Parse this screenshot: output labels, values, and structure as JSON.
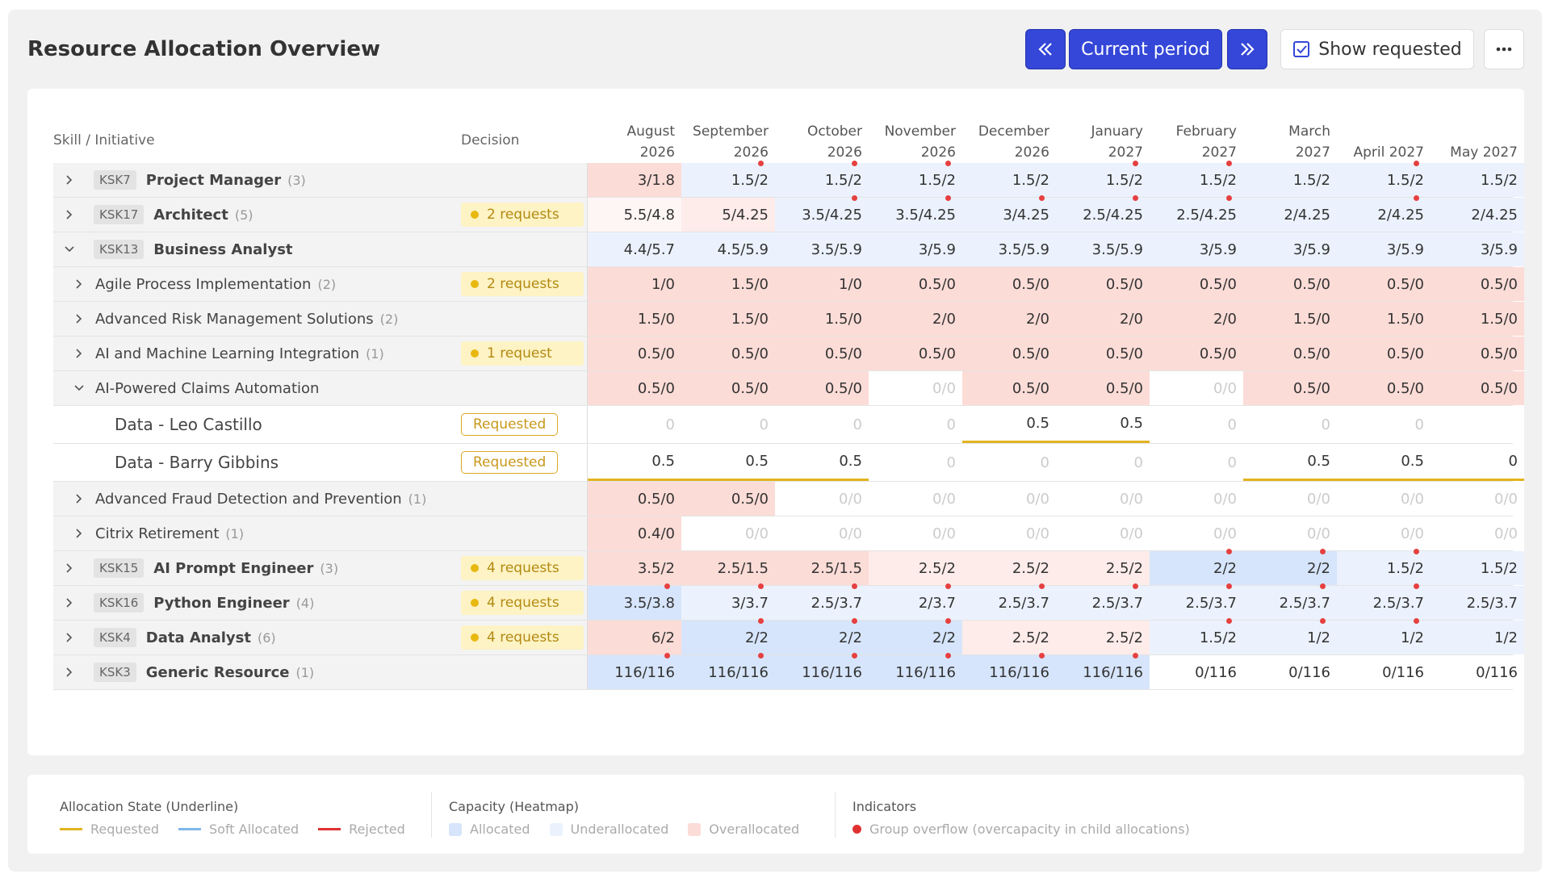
{
  "header": {
    "title": "Resource Allocation Overview",
    "buttons": {
      "current": "Current period",
      "show": "Show requested"
    }
  },
  "table": {
    "columns": {
      "skill": "Skill / Initiative",
      "decision": "Decision"
    },
    "months": [
      "August 2026",
      "September 2026",
      "October 2026",
      "November 2026",
      "December 2026",
      "January 2027",
      "February 2027",
      "March 2027",
      "April 2027",
      "May 2027"
    ],
    "rows": [
      {
        "level": 0,
        "code": "KSK7",
        "name": "Project Manager",
        "count": "(3)",
        "cells": [
          "3/1.8",
          "1.5/2",
          "1.5/2",
          "1.5/2",
          "1.5/2",
          "1.5/2",
          "1.5/2",
          "1.5/2",
          "1.5/2",
          "1.5/2"
        ],
        "heat": [
          "o",
          "u",
          "u",
          "u",
          "u",
          "u",
          "u",
          "u",
          "u",
          "u"
        ],
        "dots": [
          false,
          true,
          true,
          true,
          false,
          true,
          true,
          false,
          true,
          false
        ]
      },
      {
        "level": 0,
        "code": "KSK17",
        "name": "Architect",
        "count": "(5)",
        "decision": "2 requests",
        "cells": [
          "5.5/4.8",
          "5/4.25",
          "3.5/4.25",
          "3.5/4.25",
          "3/4.25",
          "2.5/4.25",
          "2.5/4.25",
          "2/4.25",
          "2/4.25",
          "2/4.25"
        ],
        "heat": [
          "q",
          "p",
          "u",
          "u",
          "u",
          "u",
          "u",
          "u",
          "u",
          "u"
        ],
        "dots": [
          false,
          false,
          true,
          true,
          true,
          true,
          true,
          false,
          true,
          false
        ]
      },
      {
        "level": 0,
        "code": "KSK13",
        "name": "Business Analyst",
        "expanded": true,
        "cells": [
          "4.4/5.7",
          "4.5/5.9",
          "3.5/5.9",
          "3/5.9",
          "3.5/5.9",
          "3.5/5.9",
          "3/5.9",
          "3/5.9",
          "3/5.9",
          "3/5.9"
        ],
        "heat": [
          "u",
          "u",
          "u",
          "u",
          "u",
          "u",
          "u",
          "u",
          "u",
          "u"
        ]
      },
      {
        "level": 1,
        "name": "Agile Process Implementation",
        "count": "(2)",
        "decision": "2 requests",
        "cells": [
          "1/0",
          "1.5/0",
          "1/0",
          "0.5/0",
          "0.5/0",
          "0.5/0",
          "0.5/0",
          "0.5/0",
          "0.5/0",
          "0.5/0"
        ],
        "heat": [
          "o",
          "o",
          "o",
          "o",
          "o",
          "o",
          "o",
          "o",
          "o",
          "o"
        ]
      },
      {
        "level": 1,
        "name": "Advanced Risk Management Solutions",
        "count": "(2)",
        "cells": [
          "1.5/0",
          "1.5/0",
          "1.5/0",
          "2/0",
          "2/0",
          "2/0",
          "2/0",
          "1.5/0",
          "1.5/0",
          "1.5/0"
        ],
        "heat": [
          "o",
          "o",
          "o",
          "o",
          "o",
          "o",
          "o",
          "o",
          "o",
          "o"
        ]
      },
      {
        "level": 1,
        "name": "AI and Machine Learning Integration",
        "count": "(1)",
        "decision": "1 request",
        "cells": [
          "0.5/0",
          "0.5/0",
          "0.5/0",
          "0.5/0",
          "0.5/0",
          "0.5/0",
          "0.5/0",
          "0.5/0",
          "0.5/0",
          "0.5/0"
        ],
        "heat": [
          "o",
          "o",
          "o",
          "o",
          "o",
          "o",
          "o",
          "o",
          "o",
          "o"
        ]
      },
      {
        "level": 1,
        "name": "AI-Powered Claims Automation",
        "expanded": true,
        "cells": [
          "0.5/0",
          "0.5/0",
          "0.5/0",
          "0/0",
          "0.5/0",
          "0.5/0",
          "0/0",
          "0.5/0",
          "0.5/0",
          "0.5/0"
        ],
        "heat": [
          "o",
          "o",
          "o",
          "z",
          "o",
          "o",
          "z",
          "o",
          "o",
          "o"
        ]
      },
      {
        "level": 2,
        "name": "Data - Leo Castillo",
        "decision": "Requested",
        "cells": [
          "0",
          "0",
          "0",
          "0",
          "0.5",
          "0.5",
          "0",
          "0",
          "0",
          null
        ],
        "heat": [
          "z",
          "z",
          "z",
          "z",
          "w",
          "w",
          "z",
          "z",
          "z",
          "w"
        ],
        "underline": [
          false,
          false,
          false,
          false,
          true,
          true,
          false,
          false,
          false,
          false
        ]
      },
      {
        "level": 2,
        "name": "Data - Barry Gibbins",
        "decision": "Requested",
        "cells": [
          "0.5",
          "0.5",
          "0.5",
          "0",
          "0",
          "0",
          "0",
          "0.5",
          "0.5",
          "0"
        ],
        "heat": [
          "w",
          "w",
          "w",
          "z",
          "z",
          "z",
          "z",
          "w",
          "w",
          "w"
        ],
        "underline": [
          true,
          true,
          true,
          false,
          false,
          false,
          false,
          true,
          true,
          true
        ]
      },
      {
        "level": 1,
        "name": "Advanced Fraud Detection and Prevention",
        "count": "(1)",
        "cells": [
          "0.5/0",
          "0.5/0",
          "0/0",
          "0/0",
          "0/0",
          "0/0",
          "0/0",
          "0/0",
          "0/0",
          "0/0"
        ],
        "heat": [
          "o",
          "o",
          "z",
          "z",
          "z",
          "z",
          "z",
          "z",
          "z",
          "z"
        ]
      },
      {
        "level": 1,
        "name": "Citrix Retirement",
        "count": "(1)",
        "cells": [
          "0.4/0",
          "0/0",
          "0/0",
          "0/0",
          "0/0",
          "0/0",
          "0/0",
          "0/0",
          "0/0",
          "0/0"
        ],
        "heat": [
          "o",
          "z",
          "z",
          "z",
          "z",
          "z",
          "z",
          "z",
          "z",
          "z"
        ]
      },
      {
        "level": 0,
        "code": "KSK15",
        "name": "AI Prompt Engineer",
        "count": "(3)",
        "decision": "4 requests",
        "cells": [
          "3.5/2",
          "2.5/1.5",
          "2.5/1.5",
          "2.5/2",
          "2.5/2",
          "2.5/2",
          "2/2",
          "2/2",
          "1.5/2",
          "1.5/2"
        ],
        "heat": [
          "o",
          "o",
          "o",
          "p",
          "p",
          "p",
          "a",
          "a",
          "u",
          "u"
        ],
        "dots": [
          false,
          false,
          false,
          false,
          false,
          false,
          true,
          true,
          true,
          false
        ]
      },
      {
        "level": 0,
        "code": "KSK16",
        "name": "Python Engineer",
        "count": "(4)",
        "decision": "4 requests",
        "cells": [
          "3.5/3.8",
          "3/3.7",
          "2.5/3.7",
          "2/3.7",
          "2.5/3.7",
          "2.5/3.7",
          "2.5/3.7",
          "2.5/3.7",
          "2.5/3.7",
          "2.5/3.7"
        ],
        "heat": [
          "a",
          "u",
          "u",
          "u",
          "u",
          "u",
          "u",
          "u",
          "u",
          "u"
        ],
        "dots": [
          true,
          true,
          true,
          true,
          true,
          true,
          true,
          true,
          true,
          false
        ]
      },
      {
        "level": 0,
        "code": "KSK4",
        "name": "Data Analyst",
        "count": "(6)",
        "decision": "4 requests",
        "cells": [
          "6/2",
          "2/2",
          "2/2",
          "2/2",
          "2.5/2",
          "2.5/2",
          "1.5/2",
          "1/2",
          "1/2",
          "1/2"
        ],
        "heat": [
          "o",
          "a",
          "a",
          "a",
          "p",
          "p",
          "u",
          "u",
          "u",
          "u"
        ],
        "dots": [
          false,
          true,
          true,
          true,
          false,
          false,
          true,
          true,
          true,
          false
        ]
      },
      {
        "level": 0,
        "code": "KSK3",
        "name": "Generic Resource",
        "count": "(1)",
        "cells": [
          "116/116",
          "116/116",
          "116/116",
          "116/116",
          "116/116",
          "116/116",
          "0/116",
          "0/116",
          "0/116",
          "0/116"
        ],
        "heat": [
          "a",
          "a",
          "a",
          "a",
          "a",
          "a",
          "w",
          "w",
          "w",
          "w"
        ],
        "dots": [
          true,
          true,
          true,
          true,
          true,
          true,
          false,
          false,
          false,
          false
        ]
      }
    ]
  },
  "legend": {
    "sections": [
      {
        "title": "Allocation State (Underline)",
        "style": "line",
        "items": [
          {
            "label": "Requested",
            "color": "#e2b41f"
          },
          {
            "label": "Soft Allocated",
            "color": "#7fb7ea"
          },
          {
            "label": "Rejected",
            "color": "#e03131"
          }
        ]
      },
      {
        "title": "Capacity (Heatmap)",
        "style": "box",
        "items": [
          {
            "label": "Allocated",
            "color": "#d6e5fb"
          },
          {
            "label": "Underallocated",
            "color": "#ebf2fd"
          },
          {
            "label": "Overallocated",
            "color": "#fcdcd7"
          }
        ]
      },
      {
        "title": "Indicators",
        "style": "dot",
        "items": [
          {
            "label": "Group overflow (overcapacity in child allocations)",
            "color": "#e03131"
          }
        ]
      }
    ]
  }
}
